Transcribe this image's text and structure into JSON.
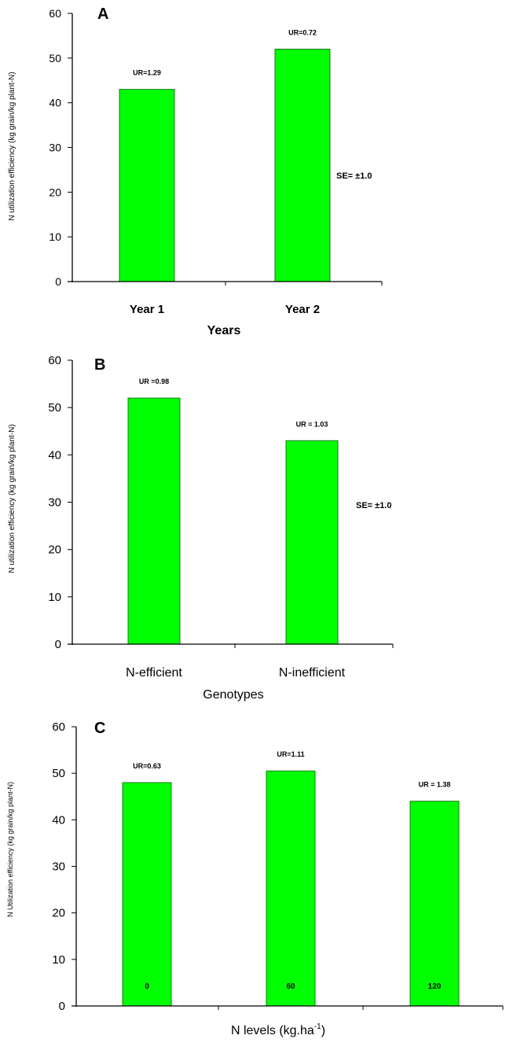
{
  "colors": {
    "bar": "#00ff00",
    "bar_edge": "#1a7a1a",
    "axis": "#000000"
  },
  "chart_data": [
    {
      "type": "bar",
      "panel_label": "A",
      "categories": [
        "Year 1",
        "Year 2"
      ],
      "values": [
        43,
        52
      ],
      "bar_labels": [
        "UR=1.29",
        "UR=0.72"
      ],
      "xlabel": "Years",
      "ylabel": "N utilization efficiency (kg grain/kg plant-N)",
      "ylim": [
        0,
        60
      ],
      "yticks": [
        0,
        10,
        20,
        30,
        40,
        50,
        60
      ],
      "annotation": "SE= ±1.0",
      "grid": false
    },
    {
      "type": "bar",
      "panel_label": "B",
      "categories": [
        "N-efficient",
        "N-inefficient"
      ],
      "values": [
        52,
        43
      ],
      "bar_labels": [
        "UR =0.98",
        "UR = 1.03"
      ],
      "xlabel": "Genotypes",
      "ylabel": "N utilization efficiency (kg grain/kg plant-N)",
      "ylim": [
        0,
        60
      ],
      "yticks": [
        0,
        10,
        20,
        30,
        40,
        50,
        60
      ],
      "annotation": "SE= ±1.0",
      "grid": false
    },
    {
      "type": "bar",
      "panel_label": "C",
      "categories": [
        "0",
        "60",
        "120"
      ],
      "values": [
        48,
        50.5,
        44
      ],
      "bar_labels": [
        "UR=0.63",
        "UR=1.11",
        "UR = 1.38"
      ],
      "xlabel": "N levels (kg.ha",
      "xlabel_sup": "-1",
      "xlabel_end": ")",
      "ylabel": "N Utilization efficiency (kg grain/kg plant-N)",
      "ylim": [
        0,
        60
      ],
      "yticks": [
        0,
        10,
        20,
        30,
        40,
        50,
        60
      ],
      "grid": false
    }
  ]
}
